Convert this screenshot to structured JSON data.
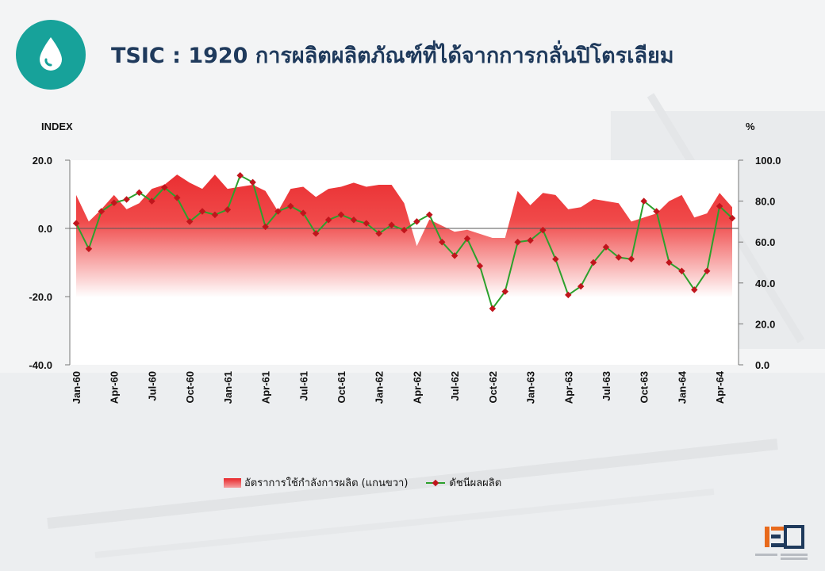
{
  "title": "TSIC : 1920 การผลิตผลิตภัณฑ์ที่ได้จากการกลั่นปิโตรเลียม",
  "icon": "oil-drop-icon",
  "colors": {
    "accent": "#17a29a",
    "title": "#1f3a5c",
    "area": "#e8262a",
    "line": "#2ca02c",
    "marker": "#c0151c"
  },
  "chart_data": {
    "type": "line",
    "left_axis": {
      "label": "INDEX",
      "ylim": [
        -40,
        20
      ],
      "ticks": [
        "20.0",
        "0.0",
        "-20.0",
        "-40.0"
      ],
      "tick_values": [
        20,
        0,
        -20,
        -40
      ]
    },
    "right_axis": {
      "label": "%",
      "ylim": [
        0,
        100
      ],
      "ticks": [
        "100.0",
        "80.0",
        "60.0",
        "40.0",
        "20.0",
        "0.0"
      ],
      "tick_values": [
        100,
        80,
        60,
        40,
        20,
        0
      ]
    },
    "x_tick_labels": [
      "Jan-60",
      "Apr-60",
      "Jul-60",
      "Oct-60",
      "Jan-61",
      "Apr-61",
      "Jul-61",
      "Oct-61",
      "Jan-62",
      "Apr-62",
      "Jul-62",
      "Oct-62",
      "Jan-63",
      "Apr-63",
      "Jul-63",
      "Oct-63",
      "Jan-64",
      "Apr-64"
    ],
    "x_tick_indices": [
      0,
      3,
      6,
      9,
      12,
      15,
      18,
      21,
      24,
      27,
      30,
      33,
      36,
      39,
      42,
      45,
      48,
      51
    ],
    "grid": false,
    "legend_position": "bottom",
    "series": [
      {
        "name": "อัตราการใช้กำลังการผลิต (แกนขวา)",
        "type": "area",
        "axis": "right",
        "values": [
          83,
          70,
          76,
          83,
          76,
          79,
          86,
          88,
          93,
          89,
          86,
          93,
          86,
          87,
          88,
          85,
          75,
          86,
          87,
          82,
          86,
          87,
          89,
          87,
          88,
          88,
          79,
          58,
          71,
          68,
          65,
          66,
          64,
          62,
          62,
          85,
          78,
          84,
          83,
          76,
          77,
          81,
          80,
          79,
          70,
          72,
          74,
          80,
          83,
          72,
          74,
          84,
          77
        ]
      },
      {
        "name": "ดัชนีผลผลิต",
        "type": "line",
        "axis": "left",
        "values": [
          1.5,
          -6,
          5,
          7.5,
          8.5,
          10.5,
          8,
          12,
          9,
          2,
          5,
          4,
          5.5,
          15.5,
          13.5,
          0.5,
          5,
          6.5,
          4.5,
          -1.5,
          2.5,
          4,
          2.5,
          1.5,
          -1.5,
          1,
          -0.5,
          2,
          4,
          -4,
          -8,
          -3,
          -11,
          -23.5,
          -18.5,
          -4,
          -3.5,
          -0.5,
          -9,
          -19.5,
          -17,
          -10,
          -5.5,
          -8.5,
          -9,
          8,
          5,
          -10,
          -12.5,
          -18,
          -12.5,
          6.5,
          3
        ]
      }
    ]
  }
}
